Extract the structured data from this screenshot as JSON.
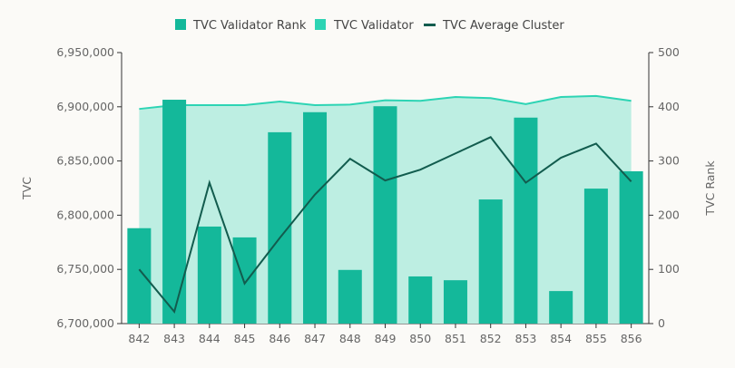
{
  "chart_data": {
    "type": "bar",
    "categories": [
      "842",
      "843",
      "844",
      "845",
      "846",
      "847",
      "848",
      "849",
      "850",
      "851",
      "852",
      "853",
      "854",
      "855",
      "856"
    ],
    "series": [
      {
        "name": "TVC Validator Rank",
        "type": "bar",
        "axis": "right",
        "color": "#14b89a",
        "values": [
          176,
          413,
          179,
          159,
          353,
          390,
          99,
          401,
          87,
          80,
          229,
          380,
          60,
          249,
          281
        ]
      },
      {
        "name": "TVC Validator",
        "type": "area",
        "axis": "left",
        "color": "#2dd4b4",
        "values": [
          6898000,
          6901500,
          6901500,
          6901500,
          6904800,
          6901500,
          6902000,
          6906000,
          6905500,
          6909000,
          6908000,
          6902500,
          6909000,
          6910000,
          6905500
        ]
      },
      {
        "name": "TVC Average Cluster",
        "type": "line",
        "axis": "left",
        "color": "#125c4e",
        "values": [
          6750000,
          6711000,
          6830000,
          6737000,
          6779000,
          6819000,
          6852000,
          6832000,
          6842000,
          6857000,
          6872000,
          6830000,
          6853000,
          6866000,
          6831000
        ]
      }
    ],
    "ylabel": "TVC",
    "y2label": "TVC Rank",
    "ylim": [
      6700000,
      6950000
    ],
    "y2lim": [
      0,
      500
    ],
    "yticks": [
      "6,700,000",
      "6,750,000",
      "6,800,000",
      "6,850,000",
      "6,900,000",
      "6,950,000"
    ],
    "y2ticks": [
      "0",
      "100",
      "200",
      "300",
      "400",
      "500"
    ],
    "legend_position": "top-center"
  }
}
